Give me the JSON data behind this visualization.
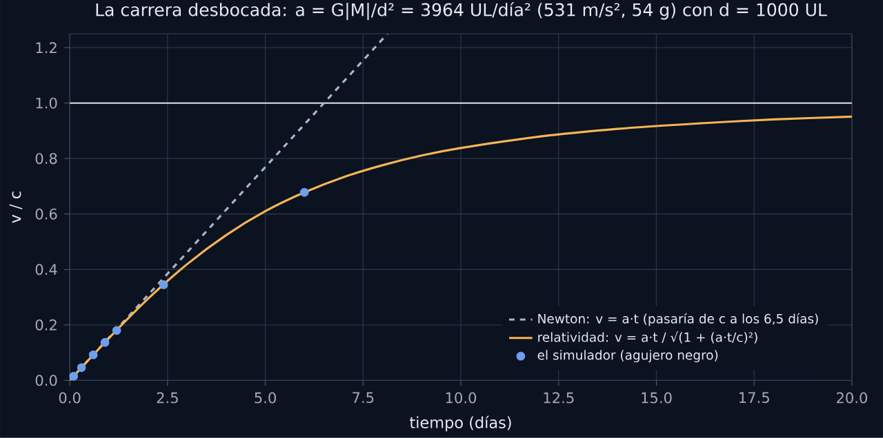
{
  "chart_data": {
    "type": "line",
    "title": "La carrera desbocada: a = G|M|/d² = 3964 UL/día² (531 m/s², 54 g) con d = 1000 UL",
    "xlabel": "tiempo (días)",
    "ylabel": "v / c",
    "xlim": [
      0,
      20
    ],
    "ylim": [
      0,
      1.25
    ],
    "xticks": [
      {
        "value": 0,
        "label": "0.0"
      },
      2.5,
      {
        "value": 5,
        "label": "5.0"
      },
      7.5,
      {
        "value": 10,
        "label": "10.0"
      },
      12.5,
      {
        "value": 15,
        "label": "15.0"
      },
      17.5,
      {
        "value": 20,
        "label": "20.0"
      }
    ],
    "yticks": [
      {
        "value": 0,
        "label": "0.0"
      },
      0.2,
      0.4,
      0.6,
      0.8,
      {
        "value": 1,
        "label": "1.0"
      },
      1.2
    ],
    "grid": true,
    "legend": "bottom right",
    "series": [
      {
        "name": "Newton: v = a·t (pasaría de c a los 6,5 días)",
        "line_style": "dashed",
        "color": "#a9b4c9",
        "x": [
          0,
          8.125
        ],
        "values": [
          0,
          1.25
        ]
      },
      {
        "name": "relatividad: v = a·t / √(1 + (a·t/c)²)",
        "line_style": "solid",
        "color": "#f5b455",
        "x": [
          0,
          1,
          2,
          3,
          4,
          5,
          6,
          7,
          8,
          9,
          10,
          12,
          14,
          16,
          18,
          20
        ],
        "values": [
          0,
          0.152,
          0.294,
          0.419,
          0.524,
          0.61,
          0.678,
          0.733,
          0.776,
          0.811,
          0.838,
          0.879,
          0.907,
          0.926,
          0.941,
          0.951
        ]
      },
      {
        "name": "el simulador (agujero negro)",
        "type": "scatter",
        "marker": "circle",
        "color": "#6f9ef0",
        "x": [
          0.1,
          0.3,
          0.6,
          0.9,
          1.2,
          2.4,
          6.0
        ],
        "values": [
          0.015,
          0.046,
          0.092,
          0.137,
          0.18,
          0.345,
          0.678
        ]
      }
    ],
    "ref_lines": [
      {
        "axis": "y",
        "value": 1,
        "color": "#d8dce6"
      }
    ]
  }
}
